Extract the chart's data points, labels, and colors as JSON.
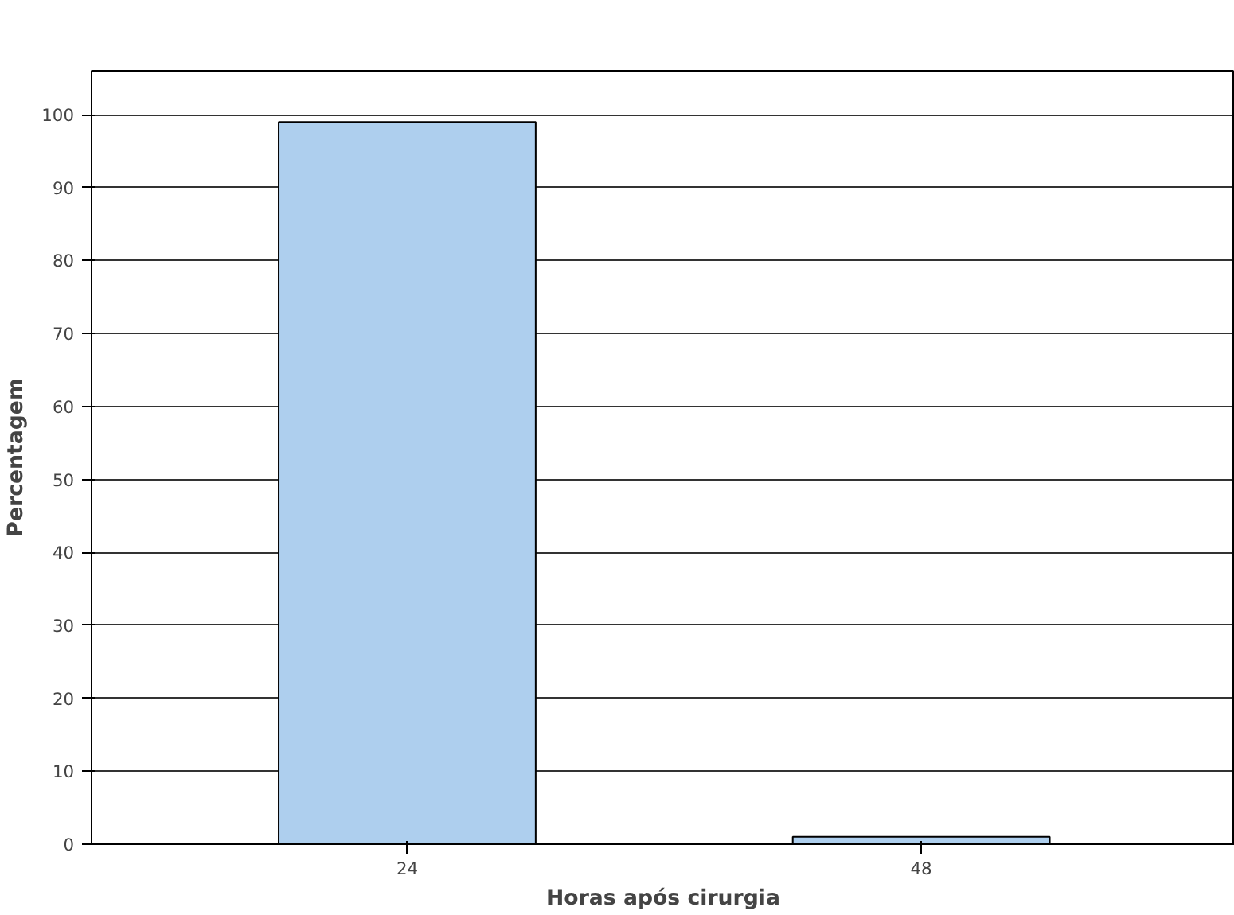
{
  "chart_data": {
    "type": "bar",
    "xlabel": "Horas após cirurgia",
    "ylabel": "Percentagem",
    "categories": [
      "24",
      "48"
    ],
    "values": [
      99,
      1
    ],
    "color": "#aecfee",
    "ylim": [
      0,
      106
    ],
    "yticks": [
      0,
      10,
      20,
      30,
      40,
      50,
      60,
      70,
      80,
      90,
      100
    ],
    "grid": "y"
  }
}
